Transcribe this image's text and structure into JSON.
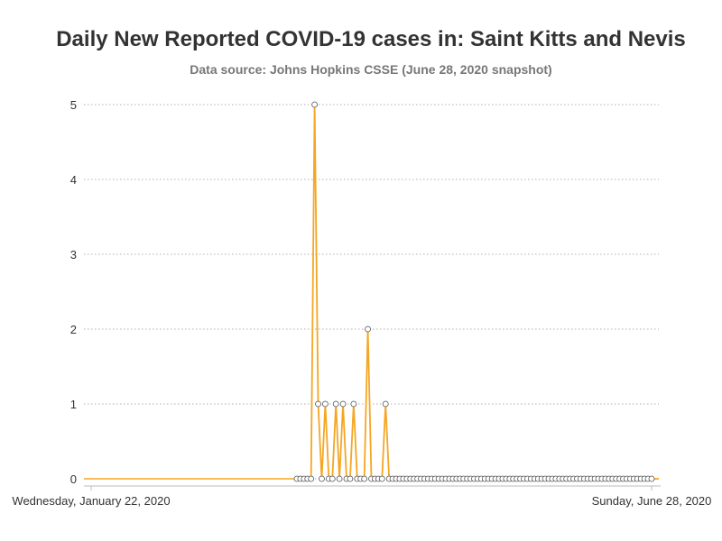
{
  "chart_data": {
    "type": "line",
    "title": "Daily New Reported COVID-19 cases in: Saint Kitts and Nevis",
    "subtitle": "Data source: Johns Hopkins CSSE (June 28, 2020 snapshot)",
    "xlabel": "",
    "ylabel": "",
    "x_start": "2020-01-22",
    "x_end": "2020-06-28",
    "x_tick_labels": [
      "Wednesday, January 22, 2020",
      "Sunday, June 28, 2020"
    ],
    "ylim": [
      0,
      5
    ],
    "y_ticks": [
      0,
      1,
      2,
      3,
      4,
      5
    ],
    "grid": true,
    "color": "#f5a623",
    "series": [
      {
        "points": [
          [
            "2020-03-20",
            0
          ],
          [
            "2020-03-21",
            0
          ],
          [
            "2020-03-22",
            0
          ],
          [
            "2020-03-23",
            0
          ],
          [
            "2020-03-24",
            0
          ],
          [
            "2020-03-25",
            5
          ],
          [
            "2020-03-26",
            1
          ],
          [
            "2020-03-27",
            0
          ],
          [
            "2020-03-28",
            1
          ],
          [
            "2020-03-29",
            0
          ],
          [
            "2020-03-30",
            0
          ],
          [
            "2020-03-31",
            1
          ],
          [
            "2020-04-01",
            0
          ],
          [
            "2020-04-02",
            1
          ],
          [
            "2020-04-03",
            0
          ],
          [
            "2020-04-04",
            0
          ],
          [
            "2020-04-05",
            1
          ],
          [
            "2020-04-06",
            0
          ],
          [
            "2020-04-07",
            0
          ],
          [
            "2020-04-08",
            0
          ],
          [
            "2020-04-09",
            2
          ],
          [
            "2020-04-10",
            0
          ],
          [
            "2020-04-11",
            0
          ],
          [
            "2020-04-12",
            0
          ],
          [
            "2020-04-13",
            0
          ],
          [
            "2020-04-14",
            1
          ],
          [
            "2020-04-15",
            0
          ],
          [
            "2020-04-16",
            0
          ],
          [
            "2020-04-17",
            0
          ],
          [
            "2020-04-18",
            0
          ],
          [
            "2020-04-19",
            0
          ],
          [
            "2020-04-20",
            0
          ],
          [
            "2020-04-21",
            0
          ],
          [
            "2020-04-22",
            0
          ],
          [
            "2020-04-23",
            0
          ],
          [
            "2020-04-24",
            0
          ],
          [
            "2020-04-25",
            0
          ],
          [
            "2020-04-26",
            0
          ],
          [
            "2020-04-27",
            0
          ],
          [
            "2020-04-28",
            0
          ],
          [
            "2020-04-29",
            0
          ],
          [
            "2020-04-30",
            0
          ],
          [
            "2020-05-01",
            0
          ],
          [
            "2020-05-02",
            0
          ],
          [
            "2020-05-03",
            0
          ],
          [
            "2020-05-04",
            0
          ],
          [
            "2020-05-05",
            0
          ],
          [
            "2020-05-06",
            0
          ],
          [
            "2020-05-07",
            0
          ],
          [
            "2020-05-08",
            0
          ],
          [
            "2020-05-09",
            0
          ],
          [
            "2020-05-10",
            0
          ],
          [
            "2020-05-11",
            0
          ],
          [
            "2020-05-12",
            0
          ],
          [
            "2020-05-13",
            0
          ],
          [
            "2020-05-14",
            0
          ],
          [
            "2020-05-15",
            0
          ],
          [
            "2020-05-16",
            0
          ],
          [
            "2020-05-17",
            0
          ],
          [
            "2020-05-18",
            0
          ],
          [
            "2020-05-19",
            0
          ],
          [
            "2020-05-20",
            0
          ],
          [
            "2020-05-21",
            0
          ],
          [
            "2020-05-22",
            0
          ],
          [
            "2020-05-23",
            0
          ],
          [
            "2020-05-24",
            0
          ],
          [
            "2020-05-25",
            0
          ],
          [
            "2020-05-26",
            0
          ],
          [
            "2020-05-27",
            0
          ],
          [
            "2020-05-28",
            0
          ],
          [
            "2020-05-29",
            0
          ],
          [
            "2020-05-30",
            0
          ],
          [
            "2020-05-31",
            0
          ],
          [
            "2020-06-01",
            0
          ],
          [
            "2020-06-02",
            0
          ],
          [
            "2020-06-03",
            0
          ],
          [
            "2020-06-04",
            0
          ],
          [
            "2020-06-05",
            0
          ],
          [
            "2020-06-06",
            0
          ],
          [
            "2020-06-07",
            0
          ],
          [
            "2020-06-08",
            0
          ],
          [
            "2020-06-09",
            0
          ],
          [
            "2020-06-10",
            0
          ],
          [
            "2020-06-11",
            0
          ],
          [
            "2020-06-12",
            0
          ],
          [
            "2020-06-13",
            0
          ],
          [
            "2020-06-14",
            0
          ],
          [
            "2020-06-15",
            0
          ],
          [
            "2020-06-16",
            0
          ],
          [
            "2020-06-17",
            0
          ],
          [
            "2020-06-18",
            0
          ],
          [
            "2020-06-19",
            0
          ],
          [
            "2020-06-20",
            0
          ],
          [
            "2020-06-21",
            0
          ],
          [
            "2020-06-22",
            0
          ],
          [
            "2020-06-23",
            0
          ],
          [
            "2020-06-24",
            0
          ],
          [
            "2020-06-25",
            0
          ],
          [
            "2020-06-26",
            0
          ],
          [
            "2020-06-27",
            0
          ],
          [
            "2020-06-28",
            0
          ]
        ]
      }
    ]
  }
}
